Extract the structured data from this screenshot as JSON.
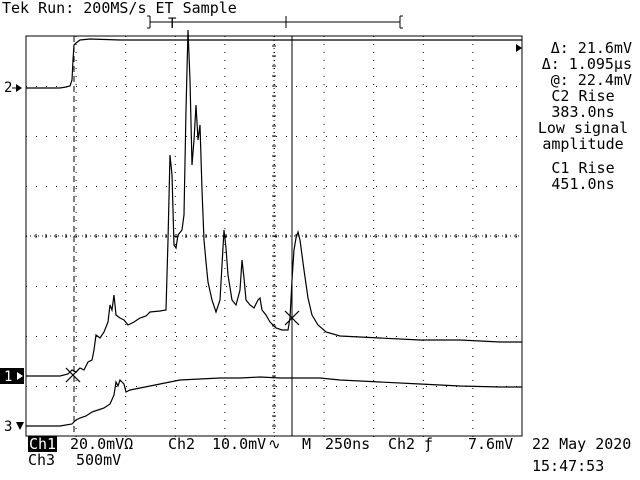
{
  "header": {
    "title": "Tek Run: 200MS/s ET Sample"
  },
  "readouts": {
    "delta_v": "Δ: 21.6mV",
    "delta_t": "Δ: 1.095µs",
    "at_v": "@: 22.4mV",
    "c2_rise_label": "C2 Rise",
    "c2_rise_value": "383.0ns",
    "msg_line1": "Low signal",
    "msg_line2": "amplitude",
    "c1_rise_label": "C1 Rise",
    "c1_rise_value": "451.0ns"
  },
  "channel_markers": {
    "ch2": "2",
    "ch1": "1",
    "ch3": "3"
  },
  "footer": {
    "ch1_label": "Ch1",
    "ch1_scale": "20.0mVΩ",
    "ch2_label": "Ch2",
    "ch2_scale": "10.0mV",
    "ch2_coupling": "∿",
    "time_label": "M",
    "time_scale": "250ns",
    "trigger_source": "Ch2",
    "trigger_slope": "ƒ",
    "trigger_level": "7.6mV",
    "ch3_label": "Ch3",
    "ch3_scale": "500mV",
    "date": "22 May 2020",
    "time": "15:47:53"
  },
  "colors": {
    "trace": "#000000",
    "background": "#ffffff"
  }
}
